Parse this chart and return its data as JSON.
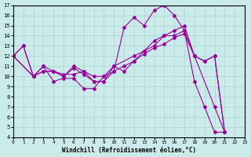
{
  "xlabel": "Windchill (Refroidissement éolien,°C)",
  "xlim": [
    0,
    23
  ],
  "ylim": [
    4,
    17
  ],
  "xticks": [
    0,
    1,
    2,
    3,
    4,
    5,
    6,
    7,
    8,
    9,
    10,
    11,
    12,
    13,
    14,
    15,
    16,
    17,
    18,
    19,
    20,
    21,
    22,
    23
  ],
  "yticks": [
    4,
    5,
    6,
    7,
    8,
    9,
    10,
    11,
    12,
    13,
    14,
    15,
    16,
    17
  ],
  "background_color": "#cbeaea",
  "grid_color": "#aad4d4",
  "line_color": "#990099",
  "series": [
    {
      "x": [
        0,
        1,
        2,
        3,
        4,
        5,
        6,
        7,
        8,
        9,
        10,
        11,
        12,
        13,
        14,
        15,
        16,
        17,
        18,
        19,
        20,
        21
      ],
      "y": [
        12,
        13,
        10,
        11,
        9.5,
        9.8,
        9.8,
        8.8,
        8.8,
        10,
        10.5,
        14.8,
        15.8,
        15,
        16.5,
        17,
        16,
        14.5,
        9.5,
        7.0,
        4.5,
        4.5
      ]
    },
    {
      "x": [
        0,
        1,
        2,
        3,
        4,
        5,
        6,
        7,
        8,
        9,
        10,
        11,
        12,
        13,
        14,
        15,
        16,
        17,
        18,
        20,
        21
      ],
      "y": [
        12,
        13,
        10,
        10.5,
        10.5,
        10,
        11,
        10.5,
        9.5,
        9.5,
        11,
        10.5,
        11.5,
        12.5,
        13,
        14,
        14,
        14.5,
        12,
        7.0,
        4.5
      ]
    },
    {
      "x": [
        0,
        2,
        3,
        4,
        5,
        6,
        7,
        8,
        9,
        10,
        11,
        12,
        13,
        14,
        15,
        16,
        17,
        18,
        19,
        20,
        21
      ],
      "y": [
        12,
        10,
        11,
        10.5,
        10,
        10.8,
        10.2,
        9.5,
        9.5,
        10.5,
        11,
        11.5,
        12.2,
        12.8,
        13.2,
        13.8,
        14.2,
        12.0,
        11.5,
        12.0,
        4.5
      ]
    },
    {
      "x": [
        0,
        2,
        3,
        4,
        5,
        6,
        7,
        8,
        9,
        10,
        12,
        13,
        14,
        15,
        16,
        17,
        18,
        19,
        20,
        21
      ],
      "y": [
        12,
        10,
        10.5,
        10.5,
        10.2,
        10.2,
        10.5,
        10,
        10,
        11,
        12,
        12.5,
        13.5,
        14,
        14.5,
        15,
        12,
        11.5,
        12,
        4.5
      ]
    }
  ]
}
